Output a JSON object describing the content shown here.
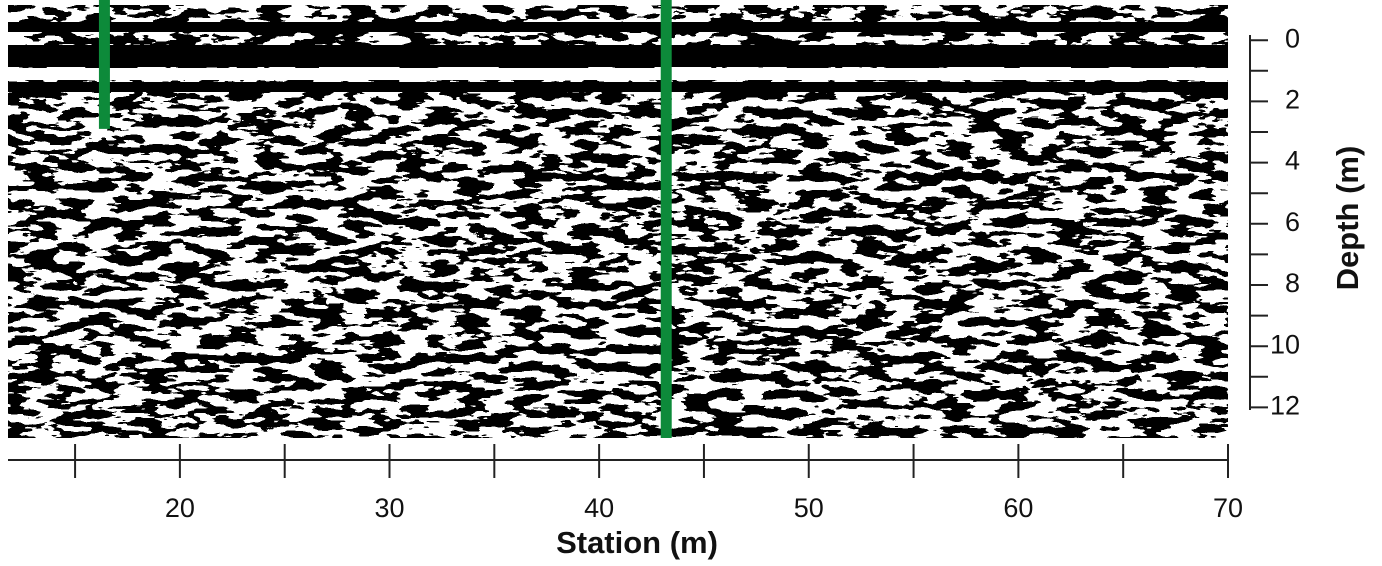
{
  "chart_data": {
    "type": "radargram",
    "xlabel": "Station (m)",
    "ylabel": "Depth (m)",
    "xlim": [
      11.8,
      70
    ],
    "xticks": [
      20,
      30,
      40,
      50,
      60,
      70
    ],
    "xminor_ticks": [
      15,
      25,
      35,
      45,
      55,
      65
    ],
    "ylim": [
      -1.15,
      13
    ],
    "yticks": [
      0,
      2,
      4,
      6,
      8,
      10,
      12
    ],
    "yminor_ticks": [
      1,
      3,
      5,
      7,
      9,
      11
    ],
    "y_inverted": true,
    "markers": [
      {
        "x": 16.4,
        "depth_end": 2.9,
        "color": "#0d8a3a"
      },
      {
        "x": 43.2,
        "depth_end": 13,
        "color": "#0d8a3a"
      }
    ]
  }
}
